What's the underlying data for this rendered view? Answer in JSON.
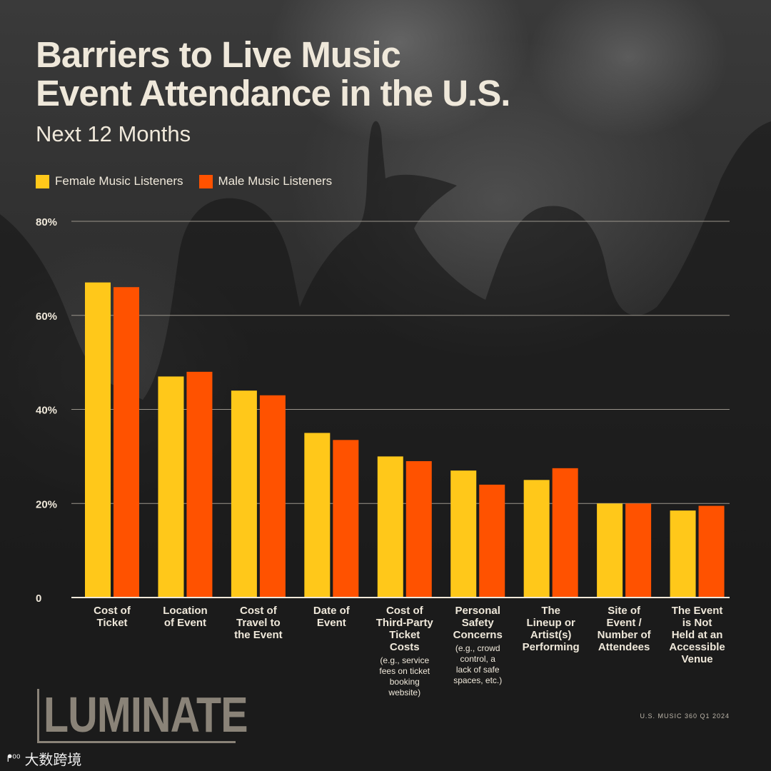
{
  "title_lines": [
    "Barriers to Live Music",
    "Event Attendance in the U.S."
  ],
  "subtitle": "Next 12 Months",
  "legend": [
    {
      "label": "Female Music Listeners",
      "color": "#FFC81A"
    },
    {
      "label": "Male Music Listeners",
      "color": "#FF5200"
    }
  ],
  "chart_data": {
    "type": "bar",
    "title": "Barriers to Live Music Event Attendance in the U.S.",
    "subtitle": "Next 12 Months",
    "ylim": [
      0,
      80
    ],
    "y_ticks": [
      {
        "value": 0,
        "label": "0"
      },
      {
        "value": 20,
        "label": "20%"
      },
      {
        "value": 40,
        "label": "40%"
      },
      {
        "value": 60,
        "label": "60%"
      },
      {
        "value": 80,
        "label": "80%"
      }
    ],
    "categories": [
      {
        "lines": [
          "Cost of",
          "Ticket"
        ],
        "note": []
      },
      {
        "lines": [
          "Location",
          "of Event"
        ],
        "note": []
      },
      {
        "lines": [
          "Cost of",
          "Travel to",
          "the Event"
        ],
        "note": []
      },
      {
        "lines": [
          "Date of",
          "Event"
        ],
        "note": []
      },
      {
        "lines": [
          "Cost of",
          "Third-Party",
          "Ticket",
          "Costs"
        ],
        "note": [
          "(e.g., service",
          "fees on ticket",
          "booking",
          "website)"
        ]
      },
      {
        "lines": [
          "Personal",
          "Safety",
          "Concerns"
        ],
        "note": [
          "(e.g., crowd",
          "control, a",
          "lack of safe",
          "spaces, etc.)"
        ]
      },
      {
        "lines": [
          "The",
          "Lineup or",
          "Artist(s)",
          "Performing"
        ],
        "note": []
      },
      {
        "lines": [
          "Site of",
          "Event /",
          "Number of",
          "Attendees"
        ],
        "note": []
      },
      {
        "lines": [
          "The Event",
          "is Not",
          "Held at an",
          "Accessible",
          "Venue"
        ],
        "note": []
      }
    ],
    "series": [
      {
        "name": "Female Music Listeners",
        "color": "#FFC81A",
        "values": [
          67,
          47,
          44,
          35,
          30,
          27,
          25,
          20,
          18.5
        ]
      },
      {
        "name": "Male Music Listeners",
        "color": "#FF5200",
        "values": [
          66,
          48,
          43,
          33.5,
          29,
          24,
          27.5,
          20,
          19.5
        ]
      }
    ],
    "grid": true,
    "legend_position": "top-left"
  },
  "logo": {
    "text": "LUMINATE"
  },
  "source": "U.S. MUSIC 360 Q1 2024",
  "watermark": {
    "icon": "logo-icon",
    "glyph": "ᖰ⁰⁰",
    "text": "大数跨境"
  }
}
